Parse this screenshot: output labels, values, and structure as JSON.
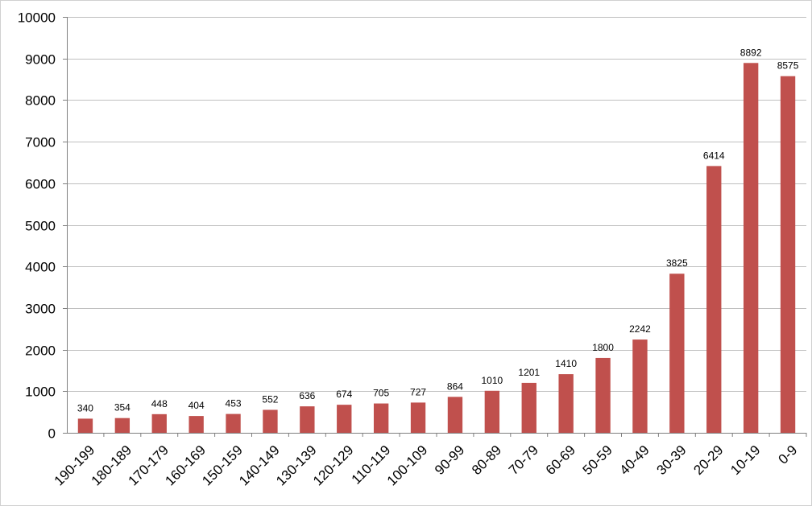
{
  "chart_data": {
    "type": "bar",
    "title": "",
    "xlabel": "",
    "ylabel": "",
    "categories": [
      "190-199",
      "180-189",
      "170-179",
      "160-169",
      "150-159",
      "140-149",
      "130-139",
      "120-129",
      "110-119",
      "100-109",
      "90-99",
      "80-89",
      "70-79",
      "60-69",
      "50-59",
      "40-49",
      "30-39",
      "20-29",
      "10-19",
      "0-9"
    ],
    "values": [
      340,
      354,
      448,
      404,
      453,
      552,
      636,
      674,
      705,
      727,
      864,
      1010,
      1201,
      1410,
      1800,
      2242,
      3825,
      6414,
      8892,
      8575
    ],
    "ylim": [
      0,
      10000
    ],
    "yticks": [
      0,
      1000,
      2000,
      3000,
      4000,
      5000,
      6000,
      7000,
      8000,
      9000,
      10000
    ],
    "grid": true,
    "legend": "none",
    "data_labels": true,
    "bar_color": "#c0504d"
  }
}
